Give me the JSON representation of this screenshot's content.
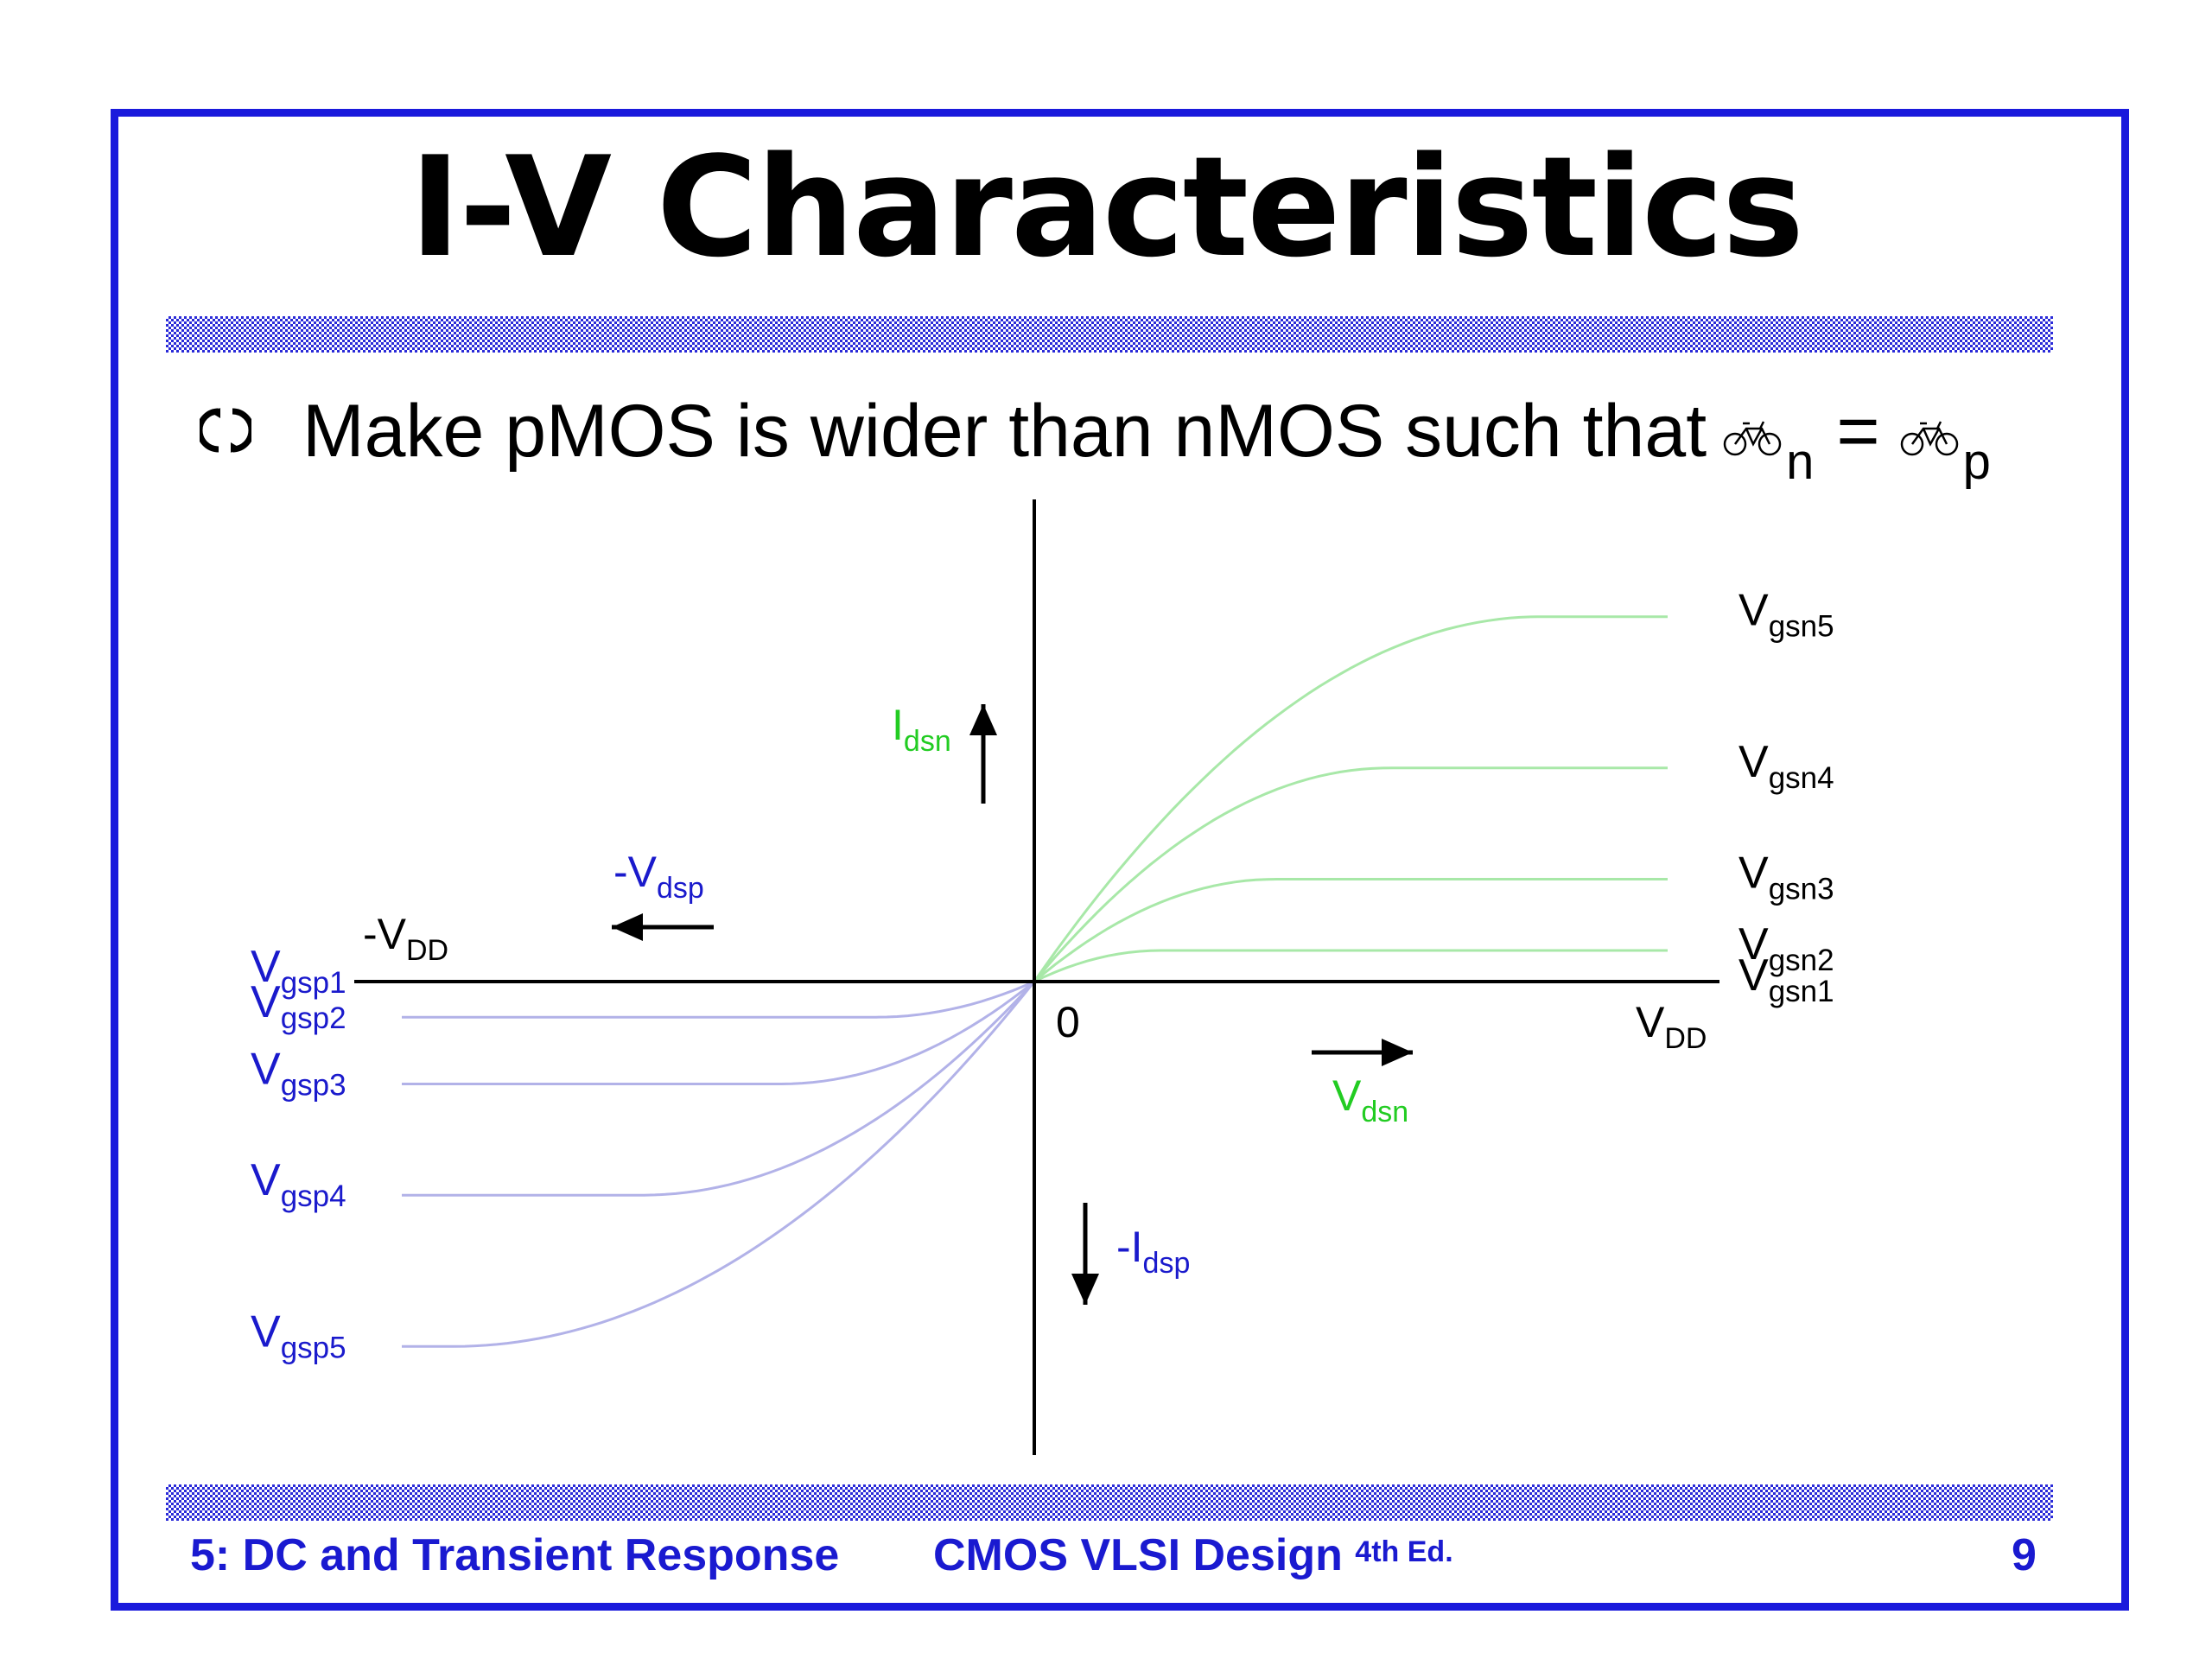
{
  "slide": {
    "title": "I-V Characteristics",
    "bullet": {
      "text": "Make pMOS is wider than nMOS such that",
      "mu_icon": "bicycle-icon",
      "sub_n": "n",
      "equals": "=",
      "sub_p": "p"
    },
    "footer": {
      "left": "5: DC and Transient Response",
      "center": "CMOS VLSI Design",
      "center_sup": "4th Ed.",
      "page": "9"
    }
  },
  "colors": {
    "frame": "#1a1adc",
    "nmos": "#22cc22",
    "pmos": "#1a1acc",
    "nmos_curve": "#a8e8a8",
    "pmos_curve": "#b2b2e8",
    "axis": "#000000"
  },
  "chart_data": {
    "type": "line",
    "title": "",
    "xlim": [
      -1,
      1
    ],
    "ylim": [
      -1,
      1
    ],
    "grid": false,
    "x_tick_labels": {
      "origin": "0",
      "pos": "V",
      "pos_sub": "DD",
      "neg": "-V",
      "neg_sub": "DD"
    },
    "axis_labels": {
      "idsn": {
        "main": "I",
        "sub": "dsn"
      },
      "vdsn": {
        "main": "V",
        "sub": "dsn"
      },
      "vdsp": {
        "main": "-V",
        "sub": "dsp"
      },
      "idsp": {
        "main": "-I",
        "sub": "dsp"
      }
    },
    "nmos_series": [
      {
        "main": "V",
        "sub": "gsn1",
        "sat": 0.0,
        "vsat": 0.0
      },
      {
        "main": "V",
        "sub": "gsn2",
        "sat": 0.07,
        "vsat": 0.2
      },
      {
        "main": "V",
        "sub": "gsn3",
        "sat": 0.23,
        "vsat": 0.38
      },
      {
        "main": "V",
        "sub": "gsn4",
        "sat": 0.48,
        "vsat": 0.56
      },
      {
        "main": "V",
        "sub": "gsn5",
        "sat": 0.82,
        "vsat": 0.8
      }
    ],
    "pmos_series": [
      {
        "main": "V",
        "sub": "gsp1",
        "sat": 0.0,
        "vsat": 0.0
      },
      {
        "main": "V",
        "sub": "gsp2",
        "sat": 0.08,
        "vsat": 0.25
      },
      {
        "main": "V",
        "sub": "gsp3",
        "sat": 0.23,
        "vsat": 0.4
      },
      {
        "main": "V",
        "sub": "gsp4",
        "sat": 0.48,
        "vsat": 0.62
      },
      {
        "main": "V",
        "sub": "gsp5",
        "sat": 0.82,
        "vsat": 0.92
      }
    ]
  }
}
